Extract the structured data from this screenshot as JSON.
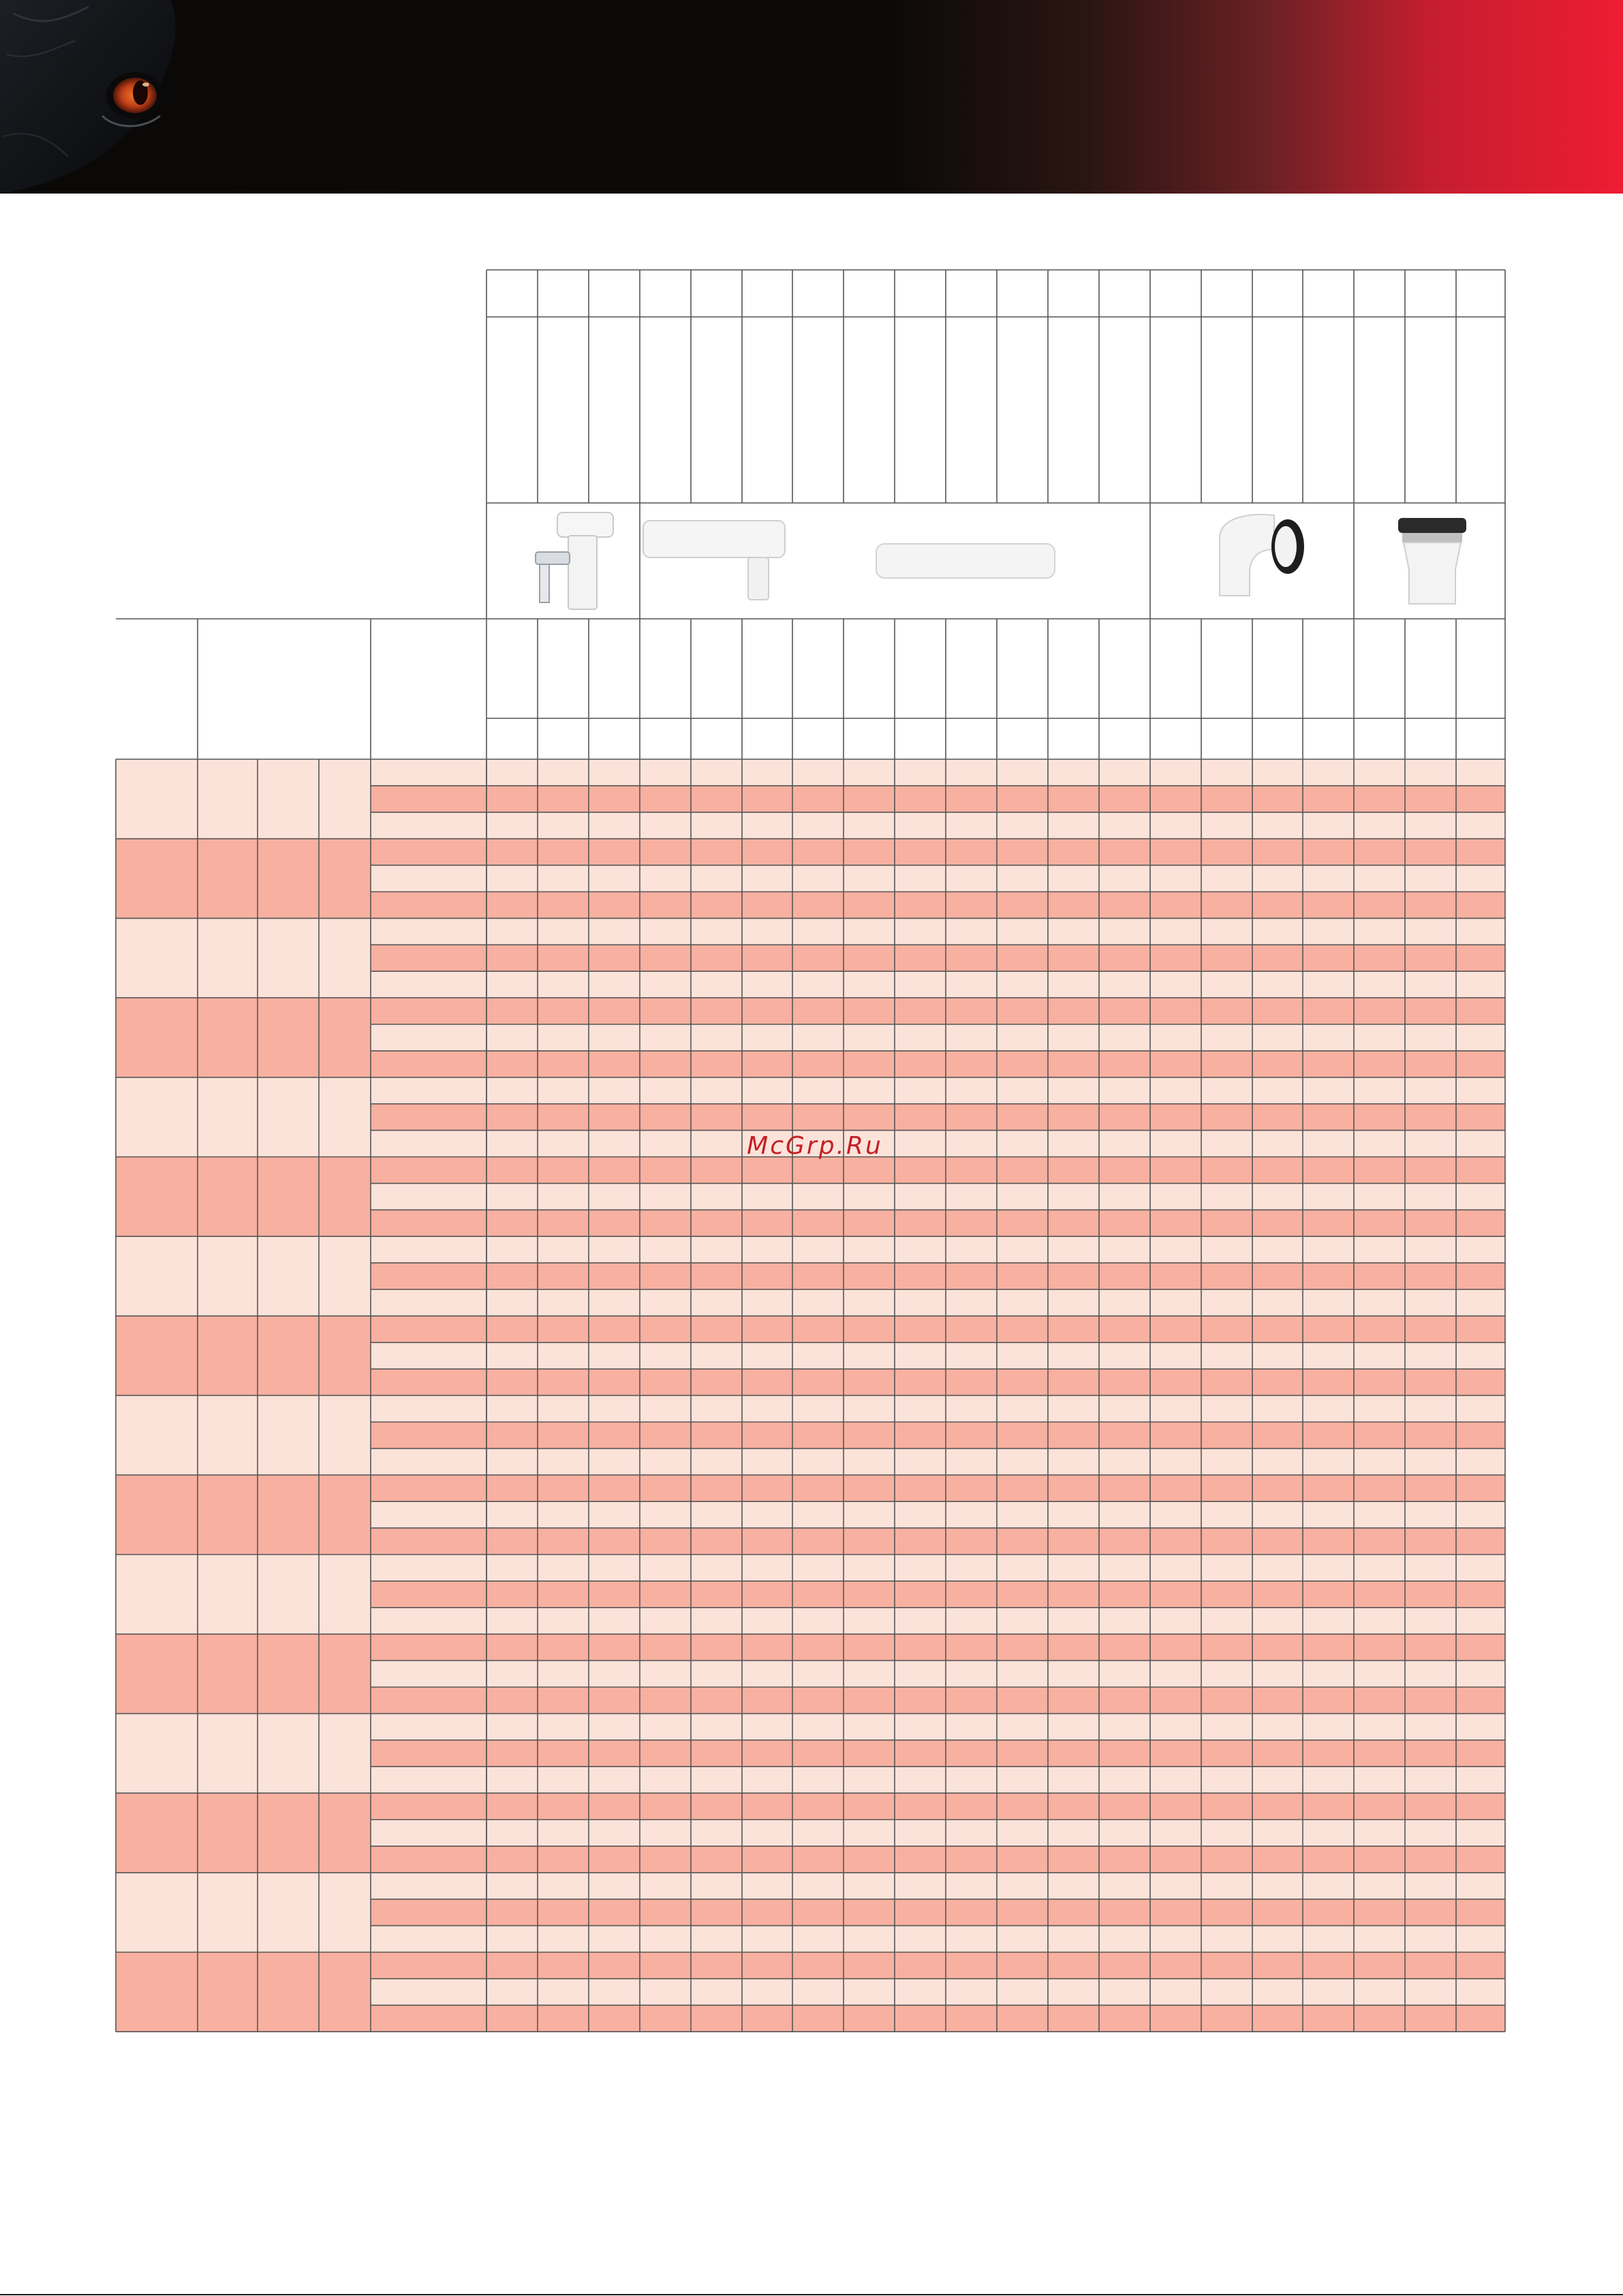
{
  "banner": {
    "left_color": "#0b0908",
    "right_color": "#ee1c33",
    "image": "animal-eye-photo"
  },
  "watermark": {
    "text": "McGrp.Ru",
    "color": "#c42024"
  },
  "table": {
    "rows_light_color": "#fce3da",
    "rows_dark_color": "#f8b0a0",
    "line_color": "#555555",
    "group_count": 16,
    "rows_per_group": 3,
    "product_images": [
      "condensate-trap-tee-icon",
      "inspection-tee-icon",
      "straight-pipe-icon",
      "elbow-90-icon",
      "adapter-icon"
    ],
    "header_cells": [],
    "cells": []
  }
}
